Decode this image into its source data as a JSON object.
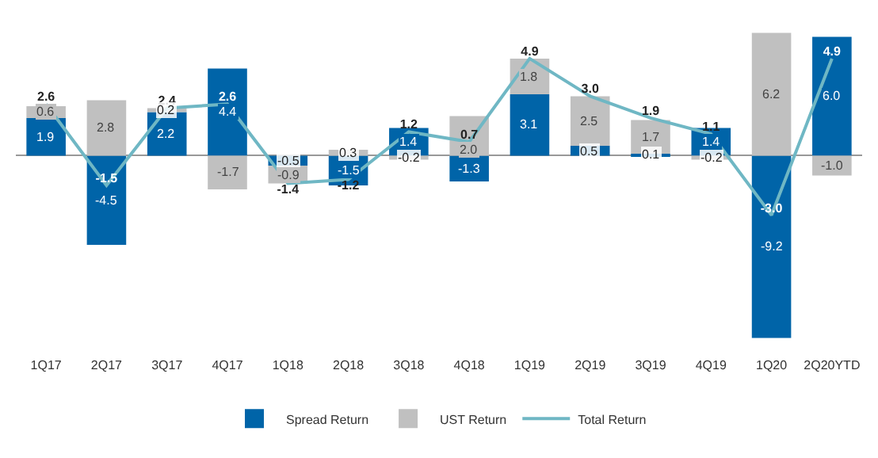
{
  "chart_data": {
    "type": "bar",
    "stacked": true,
    "legend": "bottom",
    "grid": false,
    "categories": [
      "1Q17",
      "2Q17",
      "3Q17",
      "4Q17",
      "1Q18",
      "2Q18",
      "3Q18",
      "4Q18",
      "1Q19",
      "2Q19",
      "3Q19",
      "4Q19",
      "1Q20",
      "2Q20YTD"
    ],
    "series": [
      {
        "name": "Spread Return",
        "color": "#0064a8",
        "values": [
          1.9,
          -4.5,
          2.2,
          4.4,
          -0.5,
          -1.5,
          1.4,
          -1.3,
          3.1,
          0.5,
          0.1,
          1.4,
          -9.2,
          6.0
        ],
        "value_labels": [
          "1.9",
          "-4.5",
          "2.2",
          "4.4",
          "-0.5",
          "-1.5",
          "1.4",
          "-1.3",
          "3.1",
          "0.5",
          "0.1",
          "1.4",
          "-9.2",
          "6.0"
        ]
      },
      {
        "name": "UST Return",
        "color": "#c0c0c0",
        "values": [
          0.6,
          2.8,
          0.2,
          -1.7,
          -0.9,
          0.3,
          -0.2,
          2.0,
          1.8,
          2.5,
          1.7,
          -0.2,
          6.2,
          -1.0
        ],
        "value_labels": [
          "0.6",
          "2.8",
          "0.2",
          "-1.7",
          "-0.9",
          "0.3",
          "-0.2",
          "2.0",
          "1.8",
          "2.5",
          "1.7",
          "-0.2",
          "6.2",
          "-1.0"
        ]
      },
      {
        "name": "Total Return",
        "type": "line",
        "color": "#6fb7c4",
        "values": [
          2.6,
          -1.5,
          2.4,
          2.6,
          -1.4,
          -1.2,
          1.2,
          0.7,
          4.9,
          3.0,
          1.9,
          1.1,
          -3.0,
          4.9
        ],
        "value_labels": [
          "2.6",
          "-1.5",
          "2.4",
          "2.6",
          "-1.4",
          "-1.2",
          "1.2",
          "0.7",
          "4.9",
          "3.0",
          "1.9",
          "1.1",
          "-3.0",
          "4.9"
        ]
      }
    ]
  }
}
